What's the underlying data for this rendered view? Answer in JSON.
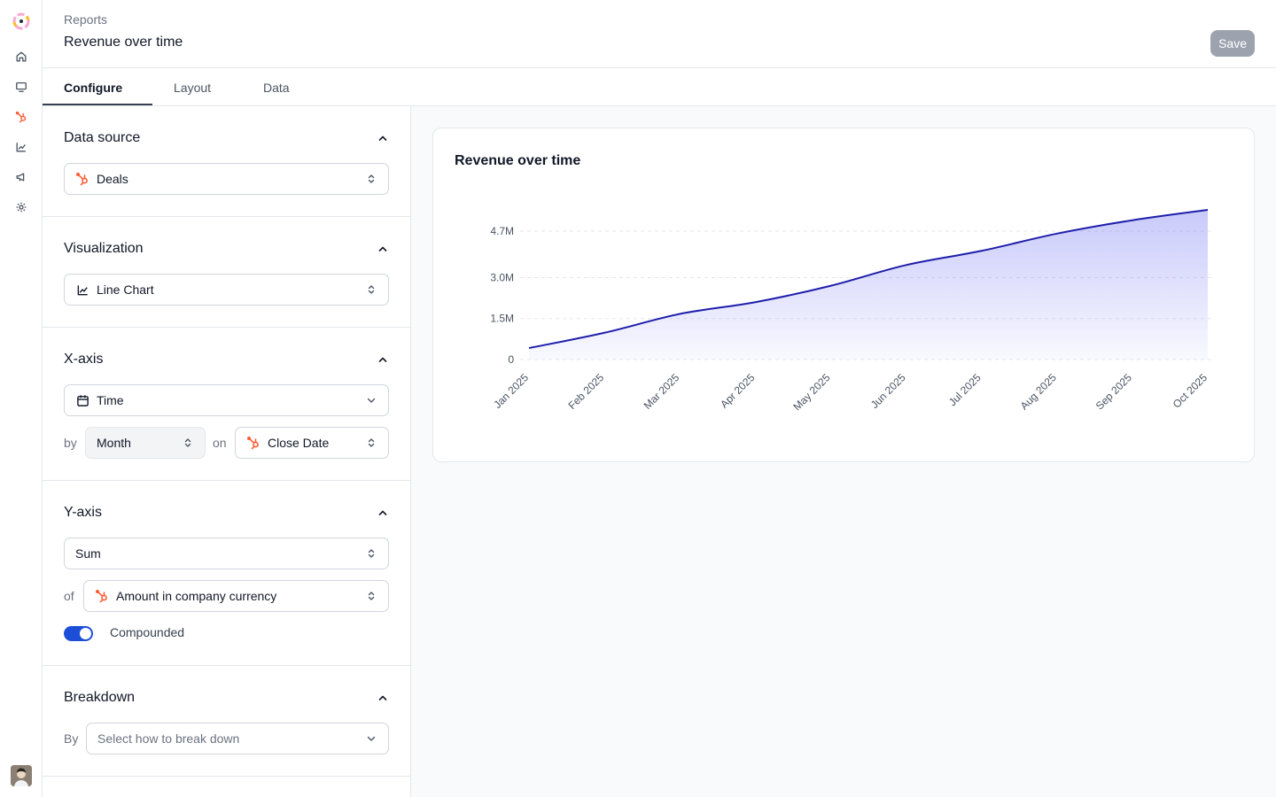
{
  "header": {
    "breadcrumb": "Reports",
    "title": "Revenue over time",
    "save_label": "Save"
  },
  "tabs": [
    {
      "label": "Configure",
      "active": true
    },
    {
      "label": "Layout",
      "active": false
    },
    {
      "label": "Data",
      "active": false
    }
  ],
  "rail": {
    "items": [
      {
        "icon": "home-icon"
      },
      {
        "icon": "monitor-icon"
      },
      {
        "icon": "hubspot-icon"
      },
      {
        "icon": "chart-icon"
      },
      {
        "icon": "megaphone-icon"
      },
      {
        "icon": "gear-icon"
      }
    ]
  },
  "config": {
    "data_source": {
      "title": "Data source",
      "value": "Deals"
    },
    "visualization": {
      "title": "Visualization",
      "value": "Line Chart"
    },
    "x_axis": {
      "title": "X-axis",
      "value": "Time",
      "by_label": "by",
      "granularity": "Month",
      "on_label": "on",
      "field": "Close Date"
    },
    "y_axis": {
      "title": "Y-axis",
      "aggregation": "Sum",
      "of_label": "of",
      "field": "Amount in company currency",
      "compounded_label": "Compounded",
      "compounded": true
    },
    "breakdown": {
      "title": "Breakdown",
      "by_label": "By",
      "placeholder": "Select how to break down"
    }
  },
  "colors": {
    "accent": "#1d4ed8",
    "line": "#1e1eab",
    "hubspot": "#ff5c35"
  },
  "chart_data": {
    "type": "area",
    "title": "Revenue over time",
    "x": [
      "Jan 2025",
      "Feb 2025",
      "Mar 2025",
      "Apr 2025",
      "May 2025",
      "Jun 2025",
      "Jul 2025",
      "Aug 2025",
      "Sep 2025",
      "Oct 2025"
    ],
    "series": [
      {
        "values": [
          0.42,
          0.98,
          1.67,
          2.1,
          2.7,
          3.46,
          3.98,
          4.61,
          5.1,
          5.48
        ]
      }
    ],
    "yticks": [
      {
        "value": 0,
        "label": "0"
      },
      {
        "value": 1.5,
        "label": "1.5M"
      },
      {
        "value": 3.0,
        "label": "3.0M"
      },
      {
        "value": 4.7,
        "label": "4.7M"
      }
    ],
    "ylim": [
      0,
      5.48
    ],
    "grid": true,
    "legend": "none"
  }
}
